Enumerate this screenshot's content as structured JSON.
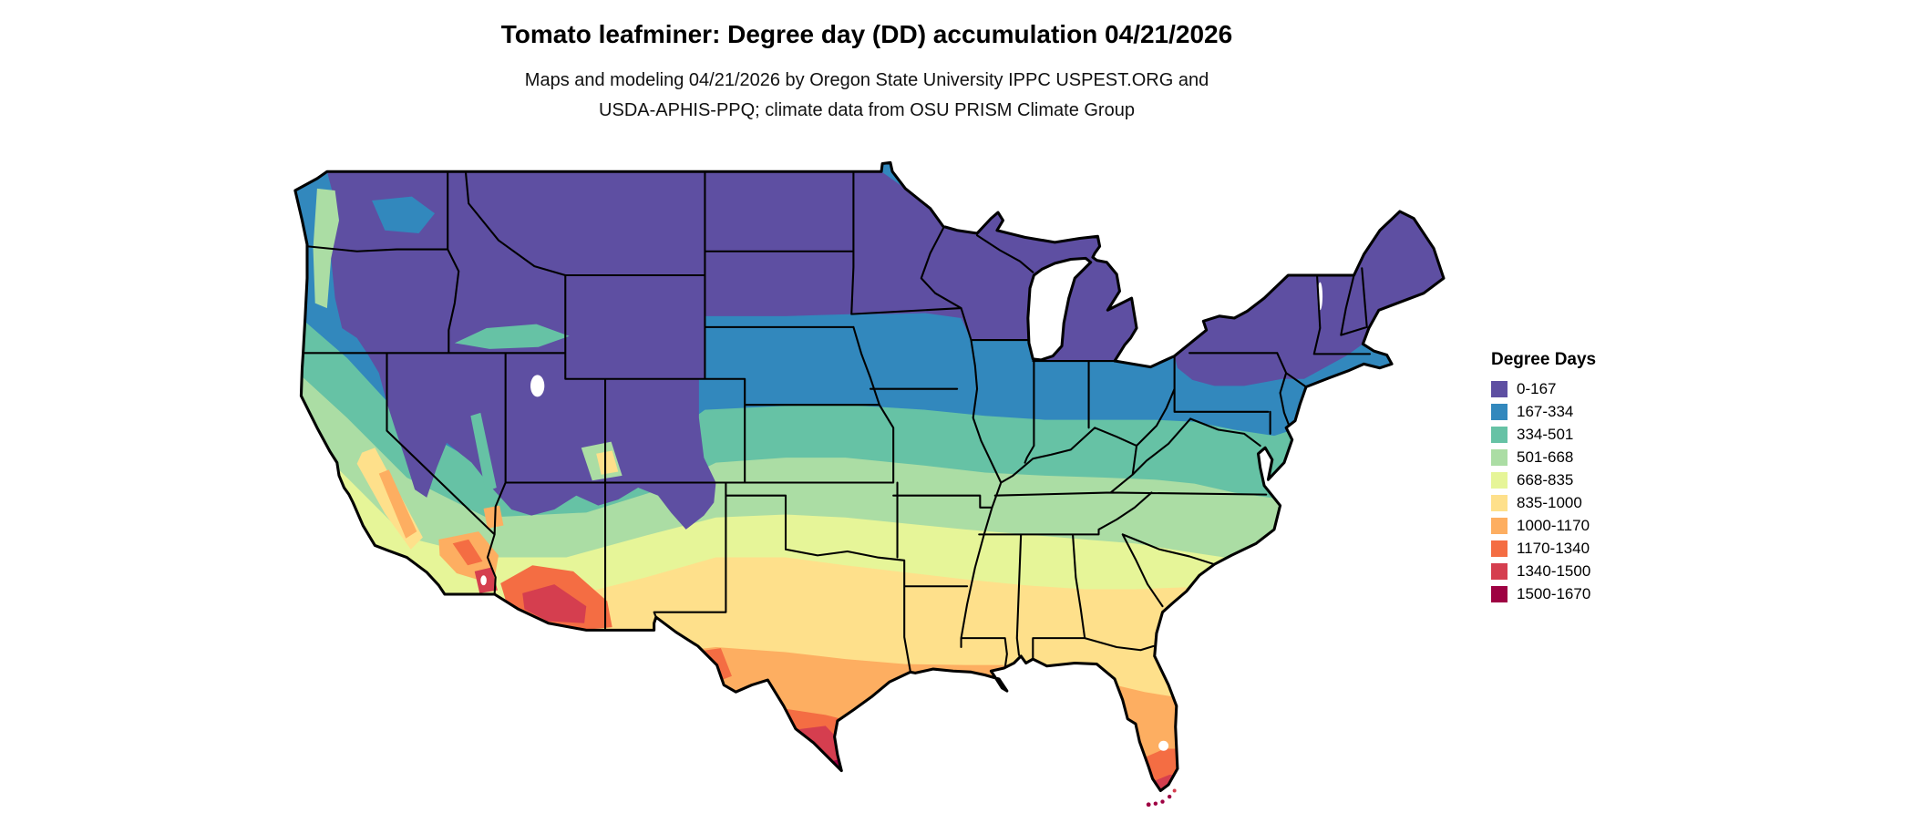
{
  "page": {
    "background": "#ffffff"
  },
  "header": {
    "title": "Tomato leafminer: Degree day (DD) accumulation 04/21/2026",
    "subtitle_line1": "Maps and modeling 04/21/2026 by Oregon State University IPPC USPEST.ORG and",
    "subtitle_line2": "USDA-APHIS-PPQ; climate data from OSU PRISM Climate Group"
  },
  "legend": {
    "title": "Degree Days",
    "entries": [
      {
        "label": "0-167",
        "color": "#5e4fa2"
      },
      {
        "label": "167-334",
        "color": "#3288bd"
      },
      {
        "label": "334-501",
        "color": "#66c2a5"
      },
      {
        "label": "501-668",
        "color": "#abdda4"
      },
      {
        "label": "668-835",
        "color": "#e6f598"
      },
      {
        "label": "835-1000",
        "color": "#fee08b"
      },
      {
        "label": "1000-1170",
        "color": "#fdae61"
      },
      {
        "label": "1170-1340",
        "color": "#f46d43"
      },
      {
        "label": "1340-1500",
        "color": "#d53e4f"
      },
      {
        "label": "1500-1670",
        "color": "#9e0142"
      }
    ]
  },
  "map": {
    "name": "contiguous-us-degree-day-accumulation-map",
    "outline_color": "#000000",
    "border_color": "#000000",
    "water_color": "#ffffff"
  },
  "chart_data": {
    "type": "heatmap",
    "subtype": "choropleth-map",
    "region": "Contiguous United States",
    "title": "Tomato leafminer: Degree day (DD) accumulation 04/21/2026",
    "legend_title": "Degree Days",
    "bands": [
      {
        "range": "0-167",
        "color": "#5e4fa2",
        "where": "Northern tier, New England, Rockies and mountain West"
      },
      {
        "range": "167-334",
        "color": "#3288bd",
        "where": "Upper Midwest, Nebraska-Iowa, Ohio Valley north, Pacific coast strip"
      },
      {
        "range": "334-501",
        "color": "#66c2a5",
        "where": "Kansas, Missouri, Kentucky, Virginia, Snake River plain"
      },
      {
        "range": "501-668",
        "color": "#abdda4",
        "where": "Tennessee, North Carolina, Ozarks, coastal California"
      },
      {
        "range": "668-835",
        "color": "#e6f598",
        "where": "Oklahoma, Arkansas, northern Georgia and Alabama"
      },
      {
        "range": "835-1000",
        "color": "#fee08b",
        "where": "North Texas, Deep South, northern Florida, Central Valley"
      },
      {
        "range": "1000-1170",
        "color": "#fdae61",
        "where": "Central Texas, Gulf Coast, central Florida, Mojave"
      },
      {
        "range": "1170-1340",
        "color": "#f46d43",
        "where": "South Texas, southern Florida, southern Arizona"
      },
      {
        "range": "1340-1500",
        "color": "#d53e4f",
        "where": "Rio Grande Valley, Phoenix area, Florida tip"
      },
      {
        "range": "1500-1670",
        "color": "#9e0142",
        "where": "Florida Keys, far south Texas tip"
      }
    ]
  }
}
